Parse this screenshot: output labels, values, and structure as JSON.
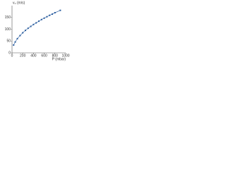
{
  "chart_data": {
    "type": "scatter",
    "y_label": "v₀ (m/s)",
    "x_label": "P (mbar)",
    "series": [
      {
        "color": "#2a5d9f",
        "x": [
          30,
          60,
          100,
          150,
          200,
          250,
          300,
          350,
          400,
          450,
          500,
          550,
          600,
          650,
          700,
          750,
          800,
          900
        ],
        "values": [
          33,
          46,
          60,
          73,
          85,
          95,
          104,
          112,
          120,
          127,
          134,
          141,
          147,
          153,
          159,
          164,
          170,
          180
        ]
      }
    ],
    "xlim": [
      0,
      1000
    ],
    "xticks": [
      0,
      200,
      400,
      600,
      800,
      1000
    ],
    "ylim": [
      0,
      200
    ],
    "yticks": [
      0,
      50,
      100,
      150
    ]
  }
}
